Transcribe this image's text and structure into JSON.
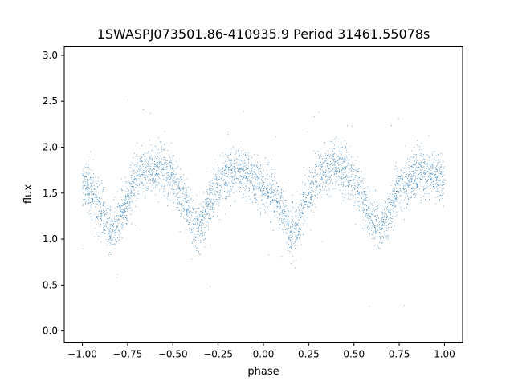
{
  "chart_data": {
    "type": "scatter",
    "title": "1SWASPJ073501.86-410935.9 Period 31461.55078s",
    "xlabel": "phase",
    "ylabel": "flux",
    "xlim": [
      -1.1,
      1.1
    ],
    "ylim": [
      -0.13,
      3.1
    ],
    "x_ticks": [
      "−1.00",
      "−0.75",
      "−0.50",
      "−0.25",
      "0.00",
      "0.25",
      "0.50",
      "0.75",
      "1.00"
    ],
    "x_tick_values": [
      -1.0,
      -0.75,
      -0.5,
      -0.25,
      0.0,
      0.25,
      0.5,
      0.75,
      1.0
    ],
    "y_ticks": [
      "0.0",
      "0.5",
      "1.0",
      "1.5",
      "2.0",
      "2.5",
      "3.0"
    ],
    "y_tick_values": [
      0.0,
      0.5,
      1.0,
      1.5,
      2.0,
      2.5,
      3.0
    ],
    "grid": false,
    "marker_color": "#1f77b4",
    "light_curve_profile": {
      "phase": [
        -1.0,
        -0.95,
        -0.9,
        -0.85,
        -0.8,
        -0.75,
        -0.7,
        -0.65,
        -0.6,
        -0.55,
        -0.5,
        -0.45,
        -0.4,
        -0.35,
        -0.3,
        -0.25,
        -0.2,
        -0.15,
        -0.1,
        -0.05,
        0.0,
        0.05,
        0.1,
        0.15,
        0.2,
        0.25,
        0.3,
        0.35,
        0.4,
        0.45,
        0.5,
        0.55,
        0.6,
        0.65,
        0.7,
        0.75,
        0.8,
        0.85,
        0.9,
        0.95,
        1.0
      ],
      "median_flux": [
        1.62,
        1.52,
        1.32,
        1.08,
        1.18,
        1.45,
        1.68,
        1.75,
        1.78,
        1.76,
        1.68,
        1.45,
        1.2,
        1.15,
        1.38,
        1.62,
        1.7,
        1.72,
        1.7,
        1.65,
        1.58,
        1.5,
        1.32,
        1.06,
        1.2,
        1.48,
        1.7,
        1.76,
        1.78,
        1.76,
        1.68,
        1.45,
        1.2,
        1.12,
        1.32,
        1.55,
        1.66,
        1.7,
        1.7,
        1.68,
        1.62
      ],
      "scatter_sigma": 0.13,
      "n_points": 4000
    }
  }
}
